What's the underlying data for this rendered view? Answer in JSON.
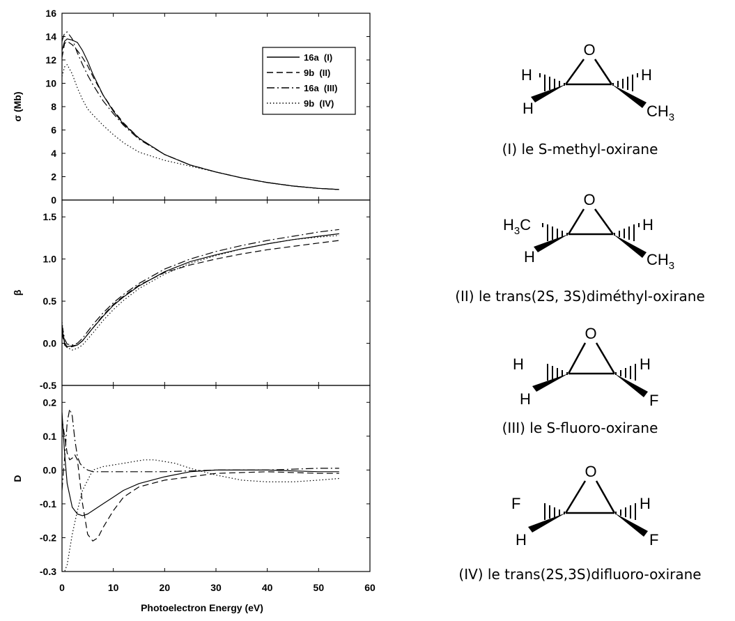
{
  "chart_data": {
    "type": "line",
    "xlabel": "Photoelectron Energy (eV)",
    "xlim": [
      0,
      60
    ],
    "xticks": [
      0,
      10,
      20,
      30,
      40,
      50,
      60
    ],
    "legend": {
      "placement": "top-right of top panel",
      "entries": [
        {
          "label": "16a  (I)",
          "style": "solid"
        },
        {
          "label": "9b  (II)",
          "style": "dashed"
        },
        {
          "label": "16a  (III)",
          "style": "dashdot"
        },
        {
          "label": "9b  (IV)",
          "style": "dotted"
        }
      ]
    },
    "panels": [
      {
        "ylabel": "σ (Mb)",
        "ylim": [
          0,
          16
        ],
        "yticks": [
          "0",
          "2",
          "4",
          "6",
          "8",
          "10",
          "12",
          "14",
          "16"
        ],
        "series": [
          {
            "name": "16a  (I)",
            "x": [
              0,
              0.5,
              1,
              2,
              3,
              4,
              5,
              6,
              8,
              10,
              12,
              15,
              20,
              25,
              30,
              35,
              40,
              45,
              50,
              54
            ],
            "y": [
              12.8,
              13.6,
              13.8,
              13.7,
              13.5,
              12.8,
              11.9,
              10.8,
              9.0,
              7.6,
              6.5,
              5.3,
              3.9,
              3.0,
              2.4,
              1.9,
              1.5,
              1.2,
              1.0,
              0.9
            ]
          },
          {
            "name": "9b  (II)",
            "x": [
              0,
              0.5,
              1,
              2,
              3,
              4,
              5,
              6,
              8,
              10,
              12,
              15,
              20,
              25,
              30,
              35,
              40,
              45,
              50,
              54
            ],
            "y": [
              12.2,
              13.4,
              13.6,
              13.3,
              12.8,
              12.2,
              11.5,
              10.6,
              9.0,
              7.7,
              6.6,
              5.3,
              3.9,
              3.0,
              2.4,
              1.9,
              1.5,
              1.2,
              1.0,
              0.9
            ]
          },
          {
            "name": "16a  (III)",
            "x": [
              0,
              0.5,
              1,
              2,
              3,
              4,
              5,
              6,
              8,
              10,
              12,
              15,
              20,
              25,
              30,
              35,
              40,
              45,
              50,
              54
            ],
            "y": [
              13.6,
              14.3,
              14.4,
              13.8,
              12.6,
              11.6,
              10.7,
              9.9,
              8.5,
              7.4,
              6.4,
              5.2,
              3.9,
              3.0,
              2.4,
              1.9,
              1.5,
              1.2,
              1.0,
              0.9
            ]
          },
          {
            "name": "9b  (IV)",
            "x": [
              0,
              0.5,
              1,
              2,
              3,
              4,
              5,
              6,
              8,
              10,
              12,
              15,
              20,
              25,
              30,
              35,
              40,
              45,
              50,
              54
            ],
            "y": [
              10.6,
              11.4,
              11.6,
              10.8,
              9.6,
              8.6,
              7.8,
              7.3,
              6.4,
              5.6,
              4.9,
              4.1,
              3.4,
              2.9,
              2.4,
              1.9,
              1.5,
              1.2,
              1.0,
              0.9
            ]
          }
        ]
      },
      {
        "ylabel": "β",
        "ylim": [
          -0.5,
          1.7
        ],
        "yticks": [
          "-0.5",
          "0.0",
          "0.5",
          "1.0",
          "1.5"
        ],
        "series": [
          {
            "name": "16a  (I)",
            "x": [
              0,
              0.5,
              1,
              2,
              3,
              4,
              6,
              8,
              10,
              12,
              15,
              20,
              25,
              30,
              35,
              40,
              45,
              50,
              54
            ],
            "y": [
              0.18,
              0.0,
              -0.04,
              -0.03,
              -0.02,
              0.03,
              0.18,
              0.32,
              0.45,
              0.55,
              0.68,
              0.85,
              0.97,
              1.05,
              1.12,
              1.18,
              1.23,
              1.27,
              1.3
            ]
          },
          {
            "name": "9b  (II)",
            "x": [
              0,
              0.5,
              1,
              2,
              3,
              4,
              6,
              8,
              10,
              12,
              15,
              20,
              25,
              30,
              35,
              40,
              45,
              50,
              54
            ],
            "y": [
              0.12,
              -0.02,
              -0.05,
              -0.04,
              -0.02,
              0.03,
              0.18,
              0.33,
              0.46,
              0.56,
              0.69,
              0.84,
              0.93,
              1.0,
              1.06,
              1.11,
              1.15,
              1.19,
              1.22
            ]
          },
          {
            "name": "16a  (III)",
            "x": [
              0,
              0.5,
              1,
              2,
              3,
              4,
              6,
              8,
              10,
              12,
              15,
              20,
              25,
              30,
              35,
              40,
              45,
              50,
              54
            ],
            "y": [
              0.22,
              0.05,
              -0.01,
              -0.02,
              0.0,
              0.06,
              0.22,
              0.36,
              0.48,
              0.58,
              0.71,
              0.88,
              1.0,
              1.09,
              1.16,
              1.22,
              1.27,
              1.32,
              1.35
            ]
          },
          {
            "name": "9b  (IV)",
            "x": [
              0,
              0.5,
              1,
              2,
              3,
              4,
              6,
              8,
              10,
              12,
              15,
              20,
              25,
              30,
              35,
              40,
              45,
              50,
              54
            ],
            "y": [
              0.25,
              0.02,
              -0.05,
              -0.08,
              -0.06,
              -0.02,
              0.12,
              0.27,
              0.4,
              0.51,
              0.65,
              0.82,
              0.95,
              1.04,
              1.12,
              1.18,
              1.23,
              1.26,
              1.28
            ]
          }
        ]
      },
      {
        "ylabel": "D",
        "ylim": [
          -0.3,
          0.25
        ],
        "yticks": [
          "-0.3",
          "-0.2",
          "-0.1",
          "0.0",
          "0.1",
          "0.2"
        ],
        "series": [
          {
            "name": "16a  (I)",
            "x": [
              0,
              0.5,
              1,
              2,
              3,
              4,
              5,
              6,
              8,
              10,
              12,
              15,
              20,
              25,
              30,
              40,
              50,
              54
            ],
            "y": [
              0.17,
              0.05,
              -0.04,
              -0.11,
              -0.13,
              -0.135,
              -0.13,
              -0.12,
              -0.1,
              -0.08,
              -0.06,
              -0.04,
              -0.02,
              -0.005,
              0.0,
              0.0,
              -0.005,
              -0.005
            ]
          },
          {
            "name": "9b  (II)",
            "x": [
              0,
              0.5,
              1,
              1.5,
              2,
              2.5,
              3,
              4,
              5,
              6,
              7,
              8,
              10,
              12,
              15,
              20,
              25,
              30,
              40,
              50,
              54
            ],
            "y": [
              0.15,
              0.1,
              0.05,
              0.03,
              0.035,
              0.045,
              0.03,
              -0.1,
              -0.19,
              -0.21,
              -0.2,
              -0.17,
              -0.12,
              -0.08,
              -0.05,
              -0.03,
              -0.02,
              -0.01,
              -0.005,
              -0.01,
              -0.01
            ]
          },
          {
            "name": "16a  (III)",
            "x": [
              0,
              0.3,
              0.6,
              1,
              1.5,
              2,
              2.5,
              3,
              3.5,
              4,
              5,
              6,
              8,
              10,
              15,
              20,
              30,
              40,
              50,
              54
            ],
            "y": [
              -0.06,
              0.0,
              0.05,
              0.14,
              0.18,
              0.16,
              0.09,
              0.04,
              0.02,
              0.01,
              0.0,
              -0.005,
              -0.005,
              -0.005,
              -0.005,
              -0.005,
              0.0,
              0.0,
              0.005,
              0.005
            ]
          },
          {
            "name": "9b  (IV)",
            "x": [
              0,
              0.5,
              1,
              2,
              3,
              4,
              6,
              8,
              10,
              12,
              14,
              16,
              18,
              20,
              22,
              25,
              30,
              35,
              40,
              45,
              50,
              54
            ],
            "y": [
              -0.3,
              -0.3,
              -0.28,
              -0.19,
              -0.12,
              -0.06,
              0.0,
              0.01,
              0.015,
              0.02,
              0.025,
              0.03,
              0.03,
              0.025,
              0.02,
              0.005,
              -0.015,
              -0.03,
              -0.035,
              -0.035,
              -0.03,
              -0.025
            ]
          }
        ]
      }
    ]
  },
  "molecules": [
    {
      "caption": "(I) le S-methyl-oxirane",
      "o": "O",
      "tl": "H",
      "tr": "H",
      "bl": "H",
      "br": "CH",
      "br_sub": "3",
      "tl_sub": ""
    },
    {
      "caption": "(II) le trans(2S, 3S)diméthyl-oxirane",
      "o": "O",
      "tl": "H",
      "tl_sub": "3",
      "tl_after": "C",
      "tr": "H",
      "bl": "H",
      "br": "CH",
      "br_sub": "3"
    },
    {
      "caption": "(III) le S-fluoro-oxirane",
      "o": "O",
      "tl": "H",
      "tr": "H",
      "bl": "H",
      "br": "F",
      "br_sub": "",
      "tl_sub": ""
    },
    {
      "caption": "(IV) le trans(2S,3S)difluoro-oxirane",
      "o": "O",
      "tl": "F",
      "tr": "H",
      "bl": "H",
      "br": "F",
      "br_sub": "",
      "tl_sub": ""
    }
  ]
}
